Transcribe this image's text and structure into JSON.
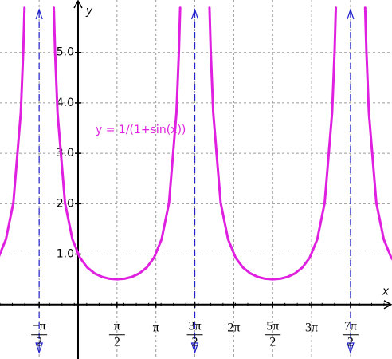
{
  "chart_data": {
    "type": "line",
    "x_label": "x",
    "y_label": "y",
    "annotation": "y = 1/(1+sin(x))",
    "xlim": [
      -3.151,
      12.67
    ],
    "ylim": [
      -1.08,
      6.04
    ],
    "grid": true,
    "xticks": [
      {
        "value": -1.5708,
        "label": "−π/2"
      },
      {
        "value": 1.5708,
        "label": "π/2"
      },
      {
        "value": 3.1416,
        "label": "π"
      },
      {
        "value": 4.7124,
        "label": "3π/2"
      },
      {
        "value": 6.2832,
        "label": "2π"
      },
      {
        "value": 7.854,
        "label": "5π/2"
      },
      {
        "value": 9.4248,
        "label": "3π"
      },
      {
        "value": 10.9956,
        "label": "7π/2"
      }
    ],
    "yticks": [
      {
        "value": 1,
        "label": "1.0"
      },
      {
        "value": 2,
        "label": "2.0"
      },
      {
        "value": 3,
        "label": "3.0"
      },
      {
        "value": 4,
        "label": "4.0"
      },
      {
        "value": 5,
        "label": "5.0"
      }
    ],
    "asymptotes": [
      -1.5708,
      4.7124,
      10.9956
    ],
    "asymptote_color": "#2222cc",
    "series": [
      {
        "name": "y = 1/(1+sin(x))",
        "color": "#e020e0",
        "x": [
          -3.212,
          -2.912,
          -2.612,
          -2.312,
          -2.212,
          -2.162,
          null,
          -0.979,
          -0.929,
          -0.829,
          -0.529,
          -0.229,
          0.071,
          0.371,
          0.671,
          0.971,
          1.271,
          1.571,
          1.871,
          2.171,
          2.471,
          2.771,
          3.071,
          3.371,
          3.671,
          3.971,
          4.071,
          4.121,
          null,
          5.304,
          5.354,
          5.454,
          5.754,
          6.054,
          6.354,
          6.654,
          6.954,
          7.254,
          7.554,
          7.854,
          8.154,
          8.454,
          8.754,
          9.054,
          9.354,
          9.654,
          9.954,
          10.254,
          10.354,
          10.404,
          null,
          11.587,
          11.637,
          11.737,
          12.037,
          12.337,
          12.637,
          12.937
        ],
        "values": [
          0.934,
          1.294,
          2.019,
          3.808,
          5.028,
          5.886,
          null,
          5.886,
          5.028,
          3.808,
          2.019,
          1.294,
          0.934,
          0.734,
          0.6167,
          0.5479,
          0.5114,
          0.5,
          0.5114,
          0.5479,
          0.6167,
          0.734,
          0.934,
          1.294,
          2.019,
          3.808,
          5.028,
          5.886,
          null,
          5.886,
          5.028,
          3.808,
          2.019,
          1.294,
          0.934,
          0.734,
          0.6167,
          0.5479,
          0.5114,
          0.5,
          0.5114,
          0.5479,
          0.6167,
          0.734,
          0.934,
          1.294,
          2.019,
          3.808,
          5.028,
          5.886,
          null,
          5.886,
          5.028,
          3.808,
          2.019,
          1.294,
          0.934,
          0.734
        ]
      }
    ]
  }
}
